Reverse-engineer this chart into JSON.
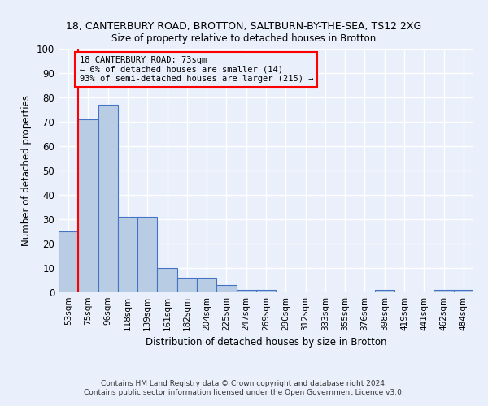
{
  "title1": "18, CANTERBURY ROAD, BROTTON, SALTBURN-BY-THE-SEA, TS12 2XG",
  "title2": "Size of property relative to detached houses in Brotton",
  "xlabel": "Distribution of detached houses by size in Brotton",
  "ylabel": "Number of detached properties",
  "categories": [
    "53sqm",
    "75sqm",
    "96sqm",
    "118sqm",
    "139sqm",
    "161sqm",
    "182sqm",
    "204sqm",
    "225sqm",
    "247sqm",
    "269sqm",
    "290sqm",
    "312sqm",
    "333sqm",
    "355sqm",
    "376sqm",
    "398sqm",
    "419sqm",
    "441sqm",
    "462sqm",
    "484sqm"
  ],
  "values": [
    25,
    71,
    77,
    31,
    31,
    10,
    6,
    6,
    3,
    1,
    1,
    0,
    0,
    0,
    0,
    0,
    1,
    0,
    0,
    1,
    1
  ],
  "bar_color": "#b8cce4",
  "bar_edge_color": "#4472c4",
  "annotation_box_text": "18 CANTERBURY ROAD: 73sqm\n← 6% of detached houses are smaller (14)\n93% of semi-detached houses are larger (215) →",
  "annotation_box_color": "#ff0000",
  "property_line_x": 0.5,
  "ylim": [
    0,
    100
  ],
  "yticks": [
    0,
    10,
    20,
    30,
    40,
    50,
    60,
    70,
    80,
    90,
    100
  ],
  "footnote": "Contains HM Land Registry data © Crown copyright and database right 2024.\nContains public sector information licensed under the Open Government Licence v3.0.",
  "bg_color": "#eaf0fb",
  "grid_color": "#ffffff"
}
